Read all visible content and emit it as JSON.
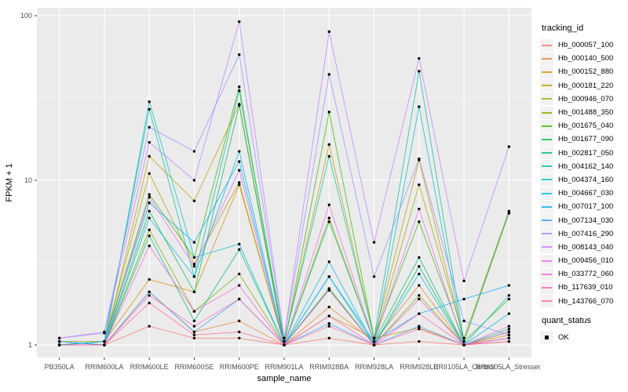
{
  "figure": {
    "x_axis_label": "sample_name",
    "y_axis_label": "FPKM + 1"
  },
  "legend": {
    "tracking_title": "tracking_id",
    "quant_title": "quant_status",
    "quant_items": [
      {
        "label": "OK",
        "marker": "black-square"
      }
    ]
  },
  "chart_data": {
    "type": "line",
    "title": "",
    "xlabel": "sample_name",
    "ylabel": "FPKM + 1",
    "x_type": "categorical",
    "y_scale": "log10",
    "y_ticks": [
      1,
      10,
      100
    ],
    "ylim": [
      0.93,
      110
    ],
    "grid": "major-white-on-gray, minor at half decades",
    "legend_position": "right",
    "panel_bg": "#EBEBEB",
    "point_color": "#000000",
    "point_legend_label": "OK",
    "categories": [
      "PB350LA",
      "RRIM600LA",
      "RRIM600LE",
      "RRIM600SE",
      "RRIM600PE",
      "RRIM901LA",
      "RRIM928BA",
      "RRIM928LA",
      "RRIM928LE",
      "RRII105LA_Control",
      "RRII105LA_Stressed"
    ],
    "series": [
      {
        "name": "Hb_000057_100",
        "color": "#F8766D",
        "values": [
          1.05,
          1.0,
          1.3,
          1.1,
          1.1,
          1.0,
          1.1,
          1.0,
          1.05,
          1.0,
          1.05
        ]
      },
      {
        "name": "Hb_000140_500",
        "color": "#EA8331",
        "values": [
          1.0,
          1.0,
          2.1,
          1.2,
          1.4,
          1.0,
          1.7,
          1.05,
          2.3,
          1.0,
          1.1
        ]
      },
      {
        "name": "Hb_000152_880",
        "color": "#D89000",
        "values": [
          1.0,
          1.05,
          2.5,
          2.1,
          9.4,
          1.0,
          1.5,
          1.1,
          1.27,
          1.0,
          1.15
        ]
      },
      {
        "name": "Hb_000181_220",
        "color": "#C09B00",
        "values": [
          1.0,
          1.0,
          14,
          7.5,
          29,
          1.05,
          16.5,
          1.1,
          13.3,
          1.05,
          6.3
        ]
      },
      {
        "name": "Hb_000946_070",
        "color": "#A3A500",
        "values": [
          1.05,
          1.05,
          11,
          3.1,
          9.7,
          1.0,
          5.9,
          1.05,
          9.4,
          1.1,
          6.5
        ]
      },
      {
        "name": "Hb_001488_350",
        "color": "#7CAE00",
        "values": [
          1.0,
          1.0,
          5.0,
          1.6,
          2.7,
          1.0,
          2.2,
          1.0,
          2.0,
          1.0,
          1.2
        ]
      },
      {
        "name": "Hb_001675_040",
        "color": "#39B600",
        "values": [
          1.0,
          1.05,
          8.2,
          3.4,
          37,
          1.0,
          26,
          1.1,
          5.6,
          1.05,
          1.9
        ]
      },
      {
        "name": "Hb_001677_090",
        "color": "#00BB4E",
        "values": [
          1.0,
          1.0,
          6.5,
          2.1,
          28.5,
          1.0,
          2.2,
          1.0,
          3.0,
          1.0,
          1.2
        ]
      },
      {
        "name": "Hb_002817_050",
        "color": "#00BF7D",
        "values": [
          1.05,
          1.0,
          4.6,
          1.4,
          3.8,
          1.0,
          5.6,
          1.05,
          3.4,
          1.0,
          1.25
        ]
      },
      {
        "name": "Hb_004162_140",
        "color": "#00C1A3",
        "values": [
          1.0,
          1.05,
          27,
          2.6,
          35,
          1.05,
          14,
          1.1,
          46,
          1.05,
          6.4
        ]
      },
      {
        "name": "Hb_004374_160",
        "color": "#00BFC4",
        "values": [
          1.0,
          1.0,
          30,
          3.4,
          4.1,
          1.0,
          2.6,
          1.0,
          28,
          1.0,
          2.0
        ]
      },
      {
        "name": "Hb_004667_030",
        "color": "#00BAE0",
        "values": [
          1.0,
          1.0,
          5.9,
          2.6,
          15,
          1.0,
          3.2,
          1.0,
          2.7,
          1.0,
          1.55
        ]
      },
      {
        "name": "Hb_007017_100",
        "color": "#00B0F6",
        "values": [
          1.0,
          1.05,
          7.3,
          4.2,
          13,
          1.0,
          2.6,
          1.05,
          1.55,
          1.9,
          2.3
        ]
      },
      {
        "name": "Hb_007134_030",
        "color": "#35A2FF",
        "values": [
          1.05,
          1.0,
          2.1,
          1.2,
          1.9,
          1.0,
          1.35,
          1.0,
          1.3,
          1.0,
          1.1
        ]
      },
      {
        "name": "Hb_007416_290",
        "color": "#9590FF",
        "values": [
          1.1,
          1.2,
          21,
          15,
          58,
          1.1,
          44,
          2.6,
          13.5,
          1.4,
          1.15
        ]
      },
      {
        "name": "Hb_008143_040",
        "color": "#C77CFF",
        "values": [
          1.1,
          1.18,
          17,
          10,
          92,
          1.1,
          80,
          4.2,
          55,
          2.45,
          16
        ]
      },
      {
        "name": "Hb_009456_010",
        "color": "#E76BF3",
        "values": [
          1.0,
          1.0,
          7.9,
          3.0,
          11.5,
          1.0,
          7.1,
          1.05,
          6.7,
          1.0,
          1.3
        ]
      },
      {
        "name": "Hb_033772_060",
        "color": "#FA62DB",
        "values": [
          1.0,
          1.0,
          4.0,
          1.6,
          2.3,
          1.0,
          2.15,
          1.0,
          1.9,
          1.0,
          1.2
        ]
      },
      {
        "name": "Hb_117639_010",
        "color": "#FF62BC",
        "values": [
          1.0,
          1.0,
          2.0,
          1.3,
          1.9,
          1.0,
          1.5,
          1.0,
          1.55,
          1.0,
          1.1
        ]
      },
      {
        "name": "Hb_143766_070",
        "color": "#FF6A98",
        "values": [
          1.0,
          1.0,
          1.8,
          1.15,
          1.2,
          1.0,
          1.3,
          1.0,
          1.25,
          1.0,
          1.05
        ]
      }
    ]
  }
}
